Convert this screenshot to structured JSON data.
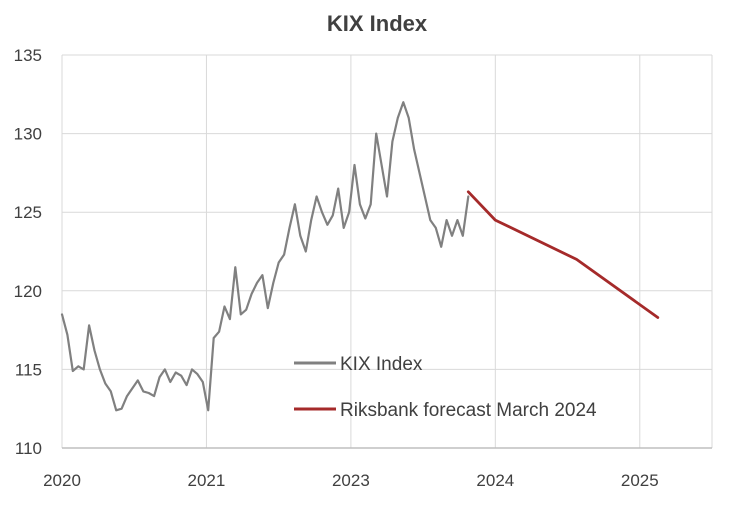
{
  "chart_data": {
    "type": "line",
    "title": "KIX Index",
    "xlabel": "",
    "ylabel": "",
    "x_ticks": [
      "2020",
      "2021",
      "2023",
      "2024",
      "2025"
    ],
    "y_ticks": [
      "110",
      "115",
      "120",
      "125",
      "130",
      "135"
    ],
    "xlim": [
      2020.0,
      2026.0
    ],
    "ylim": [
      110,
      135
    ],
    "grid": true,
    "legend_position": "bottom-center-inside",
    "colors": {
      "kix": "#808080",
      "forecast": "#a52a2a",
      "grid": "#d9d9d9",
      "axis": "#bfbfbf",
      "text": "#404040"
    },
    "series": [
      {
        "name": "KIX Index",
        "x": [
          2020.0,
          2020.05,
          2020.1,
          2020.15,
          2020.2,
          2020.25,
          2020.3,
          2020.35,
          2020.4,
          2020.45,
          2020.5,
          2020.55,
          2020.6,
          2020.65,
          2020.7,
          2020.75,
          2020.8,
          2020.85,
          2020.9,
          2020.95,
          2021.0,
          2021.05,
          2021.1,
          2021.15,
          2021.2,
          2021.25,
          2021.3,
          2021.35,
          2021.4,
          2021.45,
          2021.5,
          2021.55,
          2021.6,
          2021.65,
          2021.7,
          2021.75,
          2021.8,
          2021.85,
          2021.9,
          2021.95,
          2022.0,
          2022.05,
          2022.1,
          2022.15,
          2022.2,
          2022.25,
          2022.3,
          2022.35,
          2022.4,
          2022.45,
          2022.5,
          2022.55,
          2022.6,
          2022.65,
          2022.7,
          2022.75,
          2022.8,
          2022.85,
          2022.9,
          2022.95,
          2023.0,
          2023.05,
          2023.1,
          2023.15,
          2023.2,
          2023.25,
          2023.3,
          2023.35,
          2023.4,
          2023.45,
          2023.5,
          2023.55,
          2023.6,
          2023.65,
          2023.7,
          2023.75
        ],
        "values": [
          118.5,
          117.2,
          114.9,
          115.2,
          115.0,
          117.8,
          116.2,
          115.0,
          114.1,
          113.6,
          112.4,
          112.5,
          113.3,
          113.8,
          114.3,
          113.6,
          113.5,
          113.3,
          114.5,
          115.0,
          114.2,
          114.8,
          114.6,
          114.0,
          115.0,
          114.7,
          114.2,
          112.4,
          117.0,
          117.4,
          119.0,
          118.2,
          121.5,
          118.5,
          118.8,
          119.8,
          120.5,
          121.0,
          118.9,
          120.5,
          121.8,
          122.3,
          124.0,
          125.5,
          123.5,
          122.5,
          124.5,
          126.0,
          125.0,
          124.2,
          124.8,
          126.5,
          124.0,
          125.0,
          128.0,
          125.5,
          124.6,
          125.5,
          130.0,
          128.0,
          126.0,
          129.5,
          131.0,
          132.0,
          131.0,
          129.0,
          127.5,
          126.0,
          124.5,
          124.0,
          122.8,
          124.5,
          123.5,
          124.5,
          123.5,
          126.0
        ]
      },
      {
        "name": "Riksbank forecast March 2024",
        "x": [
          2023.75,
          2024.0,
          2024.75,
          2025.5
        ],
        "values": [
          126.3,
          124.5,
          122.0,
          118.3
        ]
      }
    ]
  }
}
